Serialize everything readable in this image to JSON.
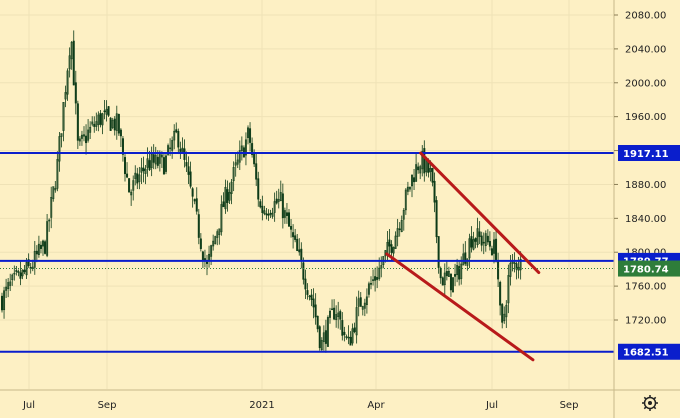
{
  "chart_data": {
    "type": "candlestick",
    "background": "#fdf0c4",
    "candle_color": "#0d3b18",
    "y_axis": {
      "ticks": [
        2080,
        2040,
        2000,
        1960,
        1920,
        1880,
        1840,
        1800,
        1760,
        1720
      ],
      "tick_labels": [
        "2080.00",
        "2040.00",
        "2000.00",
        "1960.00",
        "1920.00",
        "1880.00",
        "1840.00",
        "1800.00",
        "1760.00",
        "1720.00"
      ],
      "range": [
        1660,
        2090
      ]
    },
    "x_axis": {
      "labels": [
        "Jul",
        "Sep",
        "2021",
        "Apr",
        "Jul",
        "Sep"
      ]
    },
    "horizontal_levels": [
      {
        "value": 1917.11,
        "label": "1917.11",
        "color": "#0a1ecc"
      },
      {
        "value": 1789.77,
        "label": "1789.77",
        "color": "#0a1ecc"
      },
      {
        "value": 1682.51,
        "label": "1682.51",
        "color": "#0a1ecc"
      }
    ],
    "current_price": {
      "value": 1780.74,
      "label": "1780.74",
      "color": "#2e7d3a"
    },
    "channel_color": "#b81a1a",
    "price_series": [
      {
        "date": "2020-06-01",
        "close": 1730
      },
      {
        "date": "2020-06-15",
        "close": 1760
      },
      {
        "date": "2020-07-01",
        "close": 1780
      },
      {
        "date": "2020-07-15",
        "close": 1810
      },
      {
        "date": "2020-07-25",
        "close": 1900
      },
      {
        "date": "2020-08-06",
        "close": 2060
      },
      {
        "date": "2020-08-12",
        "close": 1920
      },
      {
        "date": "2020-08-20",
        "close": 1940
      },
      {
        "date": "2020-09-01",
        "close": 1960
      },
      {
        "date": "2020-09-15",
        "close": 1950
      },
      {
        "date": "2020-09-25",
        "close": 1870
      },
      {
        "date": "2020-10-10",
        "close": 1905
      },
      {
        "date": "2020-10-25",
        "close": 1905
      },
      {
        "date": "2020-11-05",
        "close": 1940
      },
      {
        "date": "2020-11-15",
        "close": 1880
      },
      {
        "date": "2020-11-30",
        "close": 1780
      },
      {
        "date": "2020-12-15",
        "close": 1860
      },
      {
        "date": "2021-01-05",
        "close": 1940
      },
      {
        "date": "2021-01-15",
        "close": 1850
      },
      {
        "date": "2021-02-01",
        "close": 1860
      },
      {
        "date": "2021-02-15",
        "close": 1800
      },
      {
        "date": "2021-03-01",
        "close": 1740
      },
      {
        "date": "2021-03-08",
        "close": 1690
      },
      {
        "date": "2021-03-20",
        "close": 1735
      },
      {
        "date": "2021-03-31",
        "close": 1690
      },
      {
        "date": "2021-04-10",
        "close": 1740
      },
      {
        "date": "2021-04-25",
        "close": 1775
      },
      {
        "date": "2021-05-10",
        "close": 1820
      },
      {
        "date": "2021-05-25",
        "close": 1890
      },
      {
        "date": "2021-06-01",
        "close": 1910
      },
      {
        "date": "2021-06-10",
        "close": 1890
      },
      {
        "date": "2021-06-18",
        "close": 1770
      },
      {
        "date": "2021-06-30",
        "close": 1765
      },
      {
        "date": "2021-07-15",
        "close": 1820
      },
      {
        "date": "2021-07-30",
        "close": 1810
      },
      {
        "date": "2021-08-05",
        "close": 1800
      },
      {
        "date": "2021-08-09",
        "close": 1700
      },
      {
        "date": "2021-08-16",
        "close": 1780
      },
      {
        "date": "2021-08-24",
        "close": 1790
      },
      {
        "date": "2021-08-27",
        "close": 1781
      }
    ],
    "channel_lines": [
      {
        "start": {
          "date": "2021-06-01",
          "price": 1917
        },
        "end": {
          "date": "2021-09-10",
          "price": 1776
        }
      },
      {
        "start": {
          "date": "2021-05-03",
          "price": 1798
        },
        "end": {
          "date": "2021-09-05",
          "price": 1673
        }
      }
    ]
  }
}
